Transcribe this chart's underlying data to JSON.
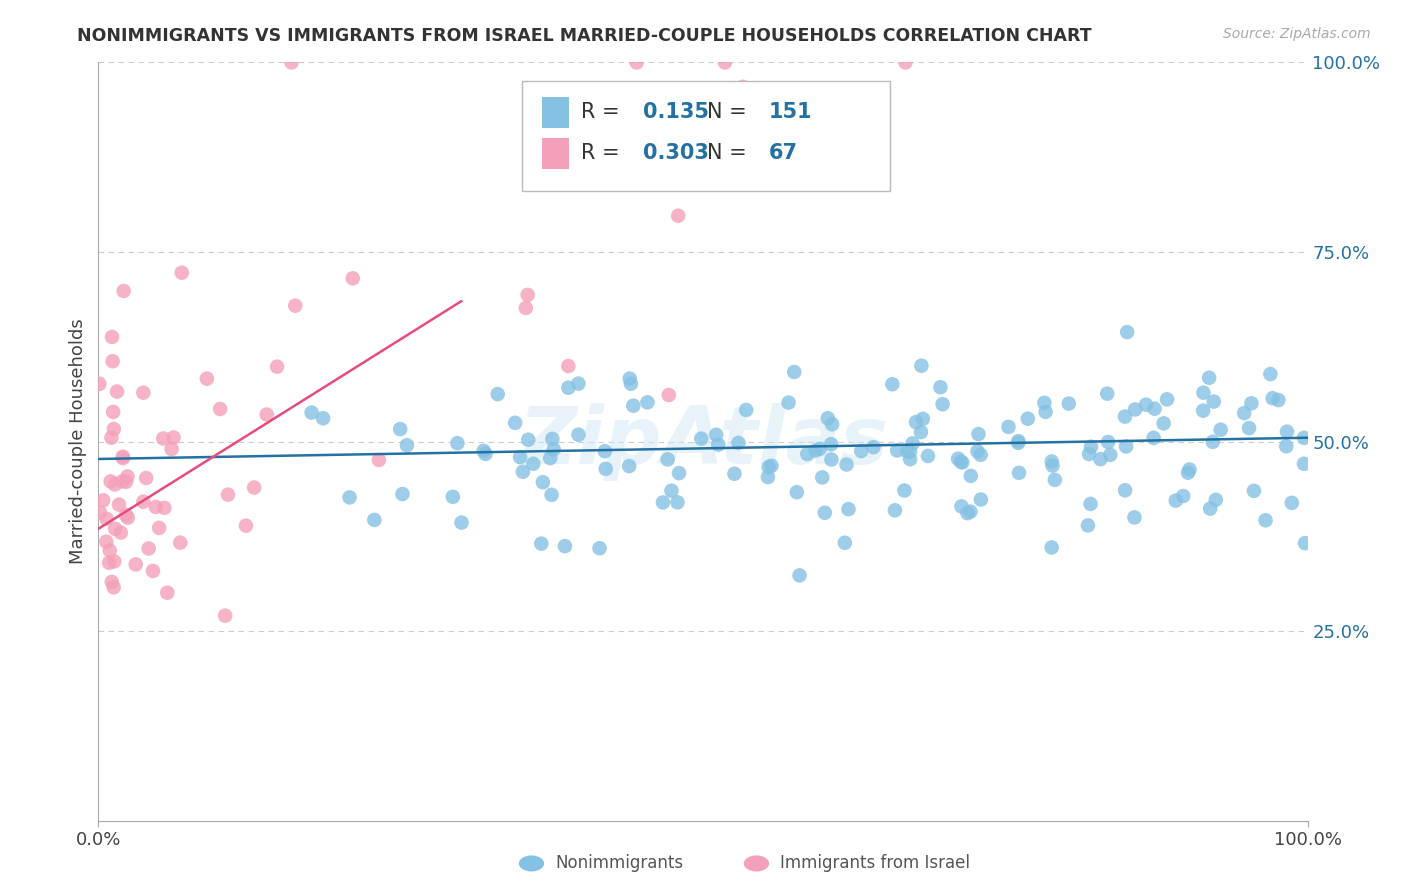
{
  "title": "NONIMMIGRANTS VS IMMIGRANTS FROM ISRAEL MARRIED-COUPLE HOUSEHOLDS CORRELATION CHART",
  "source": "Source: ZipAtlas.com",
  "ylabel": "Married-couple Households",
  "ylabel_right_ticks": [
    "100.0%",
    "75.0%",
    "50.0%",
    "25.0%"
  ],
  "ylabel_right_vals": [
    1.0,
    0.75,
    0.5,
    0.25
  ],
  "legend_label1": "Nonimmigrants",
  "legend_label2": "Immigrants from Israel",
  "R1": 0.135,
  "N1": 151,
  "R2": 0.303,
  "N2": 67,
  "color_blue": "#85c1e3",
  "color_pink": "#f4a0b8",
  "color_blue_line": "#2471a3",
  "color_pink_line": "#e74c7c",
  "color_text_blue": "#2471a3",
  "watermark": "ZipAtlas",
  "seed_blue": 123,
  "seed_pink": 456
}
